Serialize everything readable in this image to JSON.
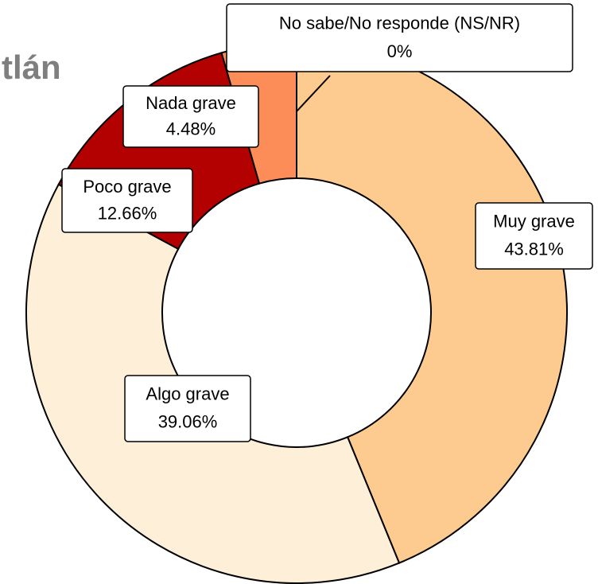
{
  "chart_data": {
    "type": "donut",
    "title": "tlán",
    "categories": [
      "Muy grave",
      "Algo grave",
      "Poco grave",
      "Nada grave",
      "No sabe/No responde (NS/NR)"
    ],
    "values": [
      43.81,
      39.06,
      12.66,
      4.48,
      0
    ],
    "value_labels": [
      "43.81%",
      "39.06%",
      "12.66%",
      "4.48%",
      "0%"
    ],
    "colors": [
      "#fdca8f",
      "#feefd9",
      "#b30000",
      "#fc8d59",
      "#7f0000"
    ]
  }
}
